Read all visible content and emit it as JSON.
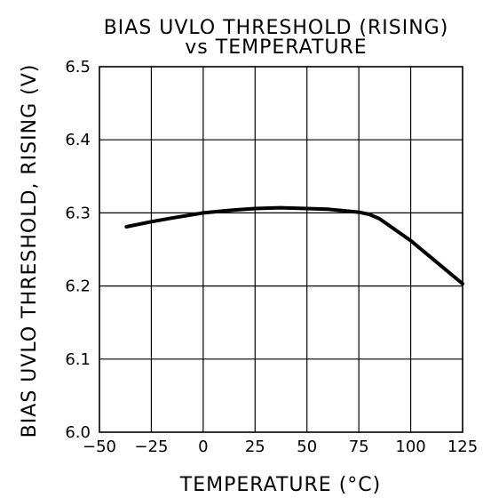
{
  "chart_data": {
    "type": "line",
    "title": "BIAS UVLO THRESHOLD (RISING)",
    "subtitle": "vs TEMPERATURE",
    "xlabel": "TEMPERATURE (°C)",
    "ylabel": "BIAS UVLO THRESHOLD, RISING (V)",
    "xlim": [
      -50,
      125
    ],
    "ylim": [
      6.0,
      6.5
    ],
    "xticks": [
      -50,
      -25,
      0,
      25,
      50,
      75,
      100,
      125
    ],
    "yticks": [
      6.0,
      6.1,
      6.2,
      6.3,
      6.4,
      6.5
    ],
    "xtick_labels": [
      "−50",
      "−25",
      "0",
      "25",
      "50",
      "75",
      "100",
      "125"
    ],
    "ytick_labels": [
      "6.0",
      "6.1",
      "6.2",
      "6.3",
      "6.4",
      "6.5"
    ],
    "grid": true,
    "series": [
      {
        "x": [
          -37,
          -25,
          -15,
          0,
          15,
          25,
          37,
          50,
          60,
          75,
          80,
          85,
          100,
          125
        ],
        "y": [
          6.281,
          6.288,
          6.293,
          6.3,
          6.304,
          6.306,
          6.307,
          6.306,
          6.305,
          6.301,
          6.298,
          6.292,
          6.262,
          6.203
        ],
        "color": "#000000"
      }
    ]
  }
}
